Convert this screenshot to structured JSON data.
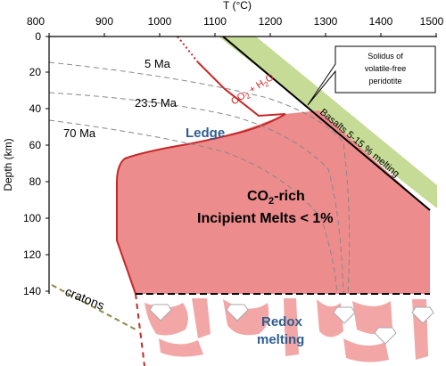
{
  "axes": {
    "top_title": "T (°C)",
    "left_title": "Depth (km)",
    "temperature_ticks": [
      "800",
      "900",
      "1000",
      "1100",
      "1200",
      "1300",
      "1400",
      "1500"
    ],
    "depth_ticks": [
      "0",
      "20",
      "40",
      "60",
      "80",
      "100",
      "120",
      "140"
    ]
  },
  "geotherm_labels": [
    "5 Ma",
    "23.5 Ma",
    "70 Ma"
  ],
  "labels": {
    "ledge": "Ledge",
    "melt_line1": "CO",
    "melt_line1_sub": "2",
    "melt_line1_tail": "-rich",
    "melt_line2": "Incipient Melts < 1%",
    "redox_line1": "Redox",
    "redox_line2": "melting",
    "cratons": "cratons",
    "solidus_line1": "Solidus of",
    "solidus_line2": "volatile-free",
    "solidus_line3": "peridotite",
    "basalts": "Basalts 5-15 % melting",
    "co2h2o_a": "CO",
    "co2h2o_b": "2",
    "co2h2o_c": " + H",
    "co2h2o_d": "2",
    "co2h2o_e": "O"
  },
  "colors": {
    "melt_fill": "#ec8c8c",
    "melt_edge": "#c62828",
    "basalt_band": "#c6db96",
    "redox_blob": "#f2a6a6",
    "text_blue": "#2f5d8f",
    "geotherm": "#888888",
    "craton_line": "#8a8a4a"
  }
}
